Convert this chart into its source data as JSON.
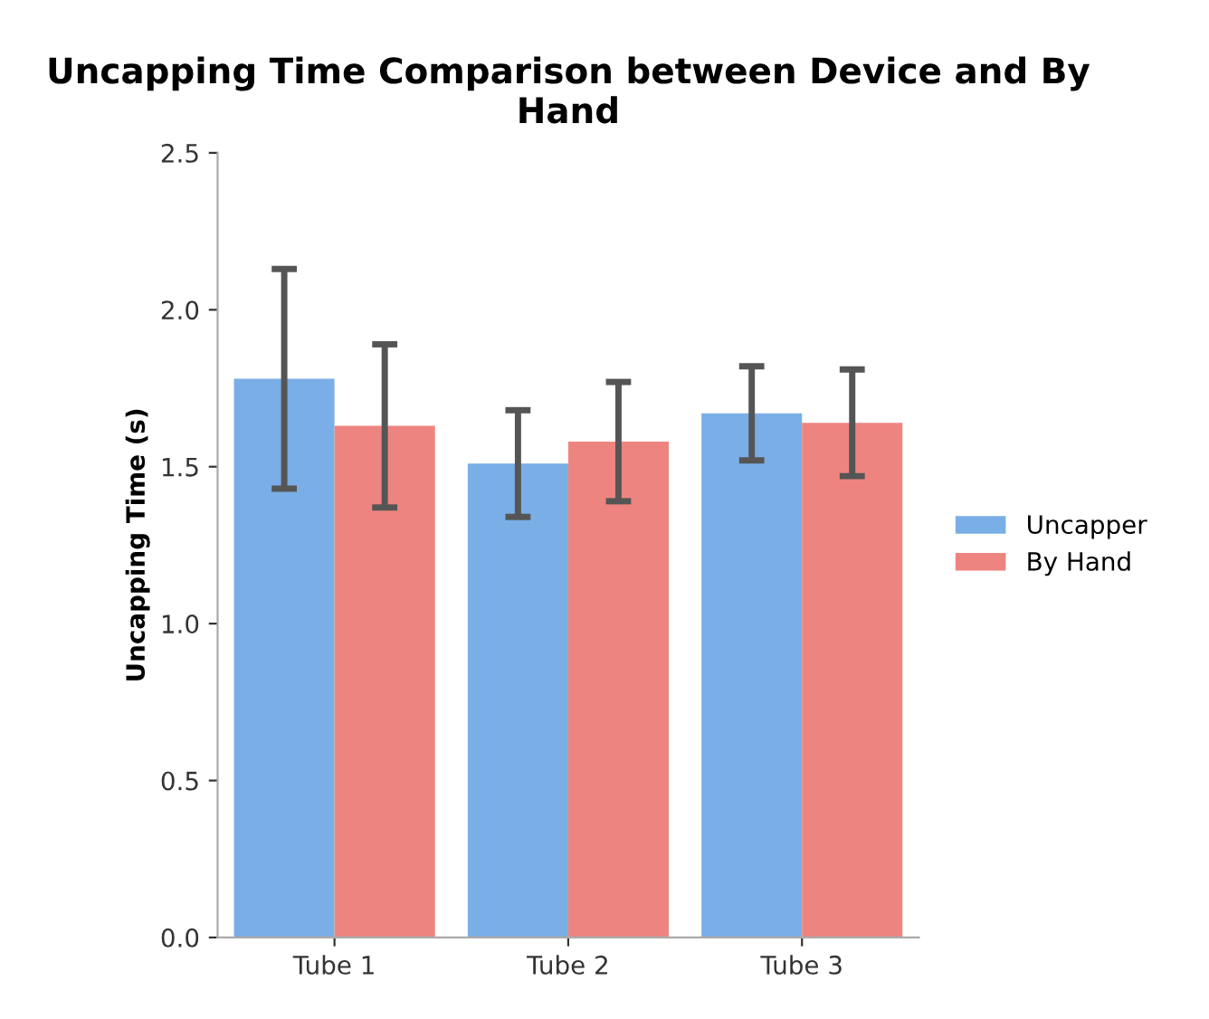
{
  "chart_data": {
    "type": "bar",
    "title": "Uncapping Time Comparison between Device and By Hand",
    "ylabel": "Uncapping Time (s)",
    "categories": [
      "Tube 1",
      "Tube 2",
      "Tube 3"
    ],
    "series": [
      {
        "name": "Uncapper",
        "color": "#7aaee6",
        "values": [
          1.78,
          1.51,
          1.67
        ],
        "errors": [
          0.35,
          0.17,
          0.15
        ]
      },
      {
        "name": "By Hand",
        "color": "#ee8480",
        "values": [
          1.63,
          1.58,
          1.64
        ],
        "errors": [
          0.26,
          0.19,
          0.17
        ]
      }
    ],
    "ylim": [
      0,
      2.5
    ],
    "yticks": [
      {
        "value": 0,
        "label": "0.0"
      },
      {
        "value": 0.5,
        "label": "0.5"
      },
      {
        "value": 1,
        "label": "1.0"
      },
      {
        "value": 1.5,
        "label": "1.5"
      },
      {
        "value": 2,
        "label": "2.0"
      },
      {
        "value": 2.5,
        "label": "2.5"
      }
    ],
    "grid": false,
    "legend": "right"
  }
}
